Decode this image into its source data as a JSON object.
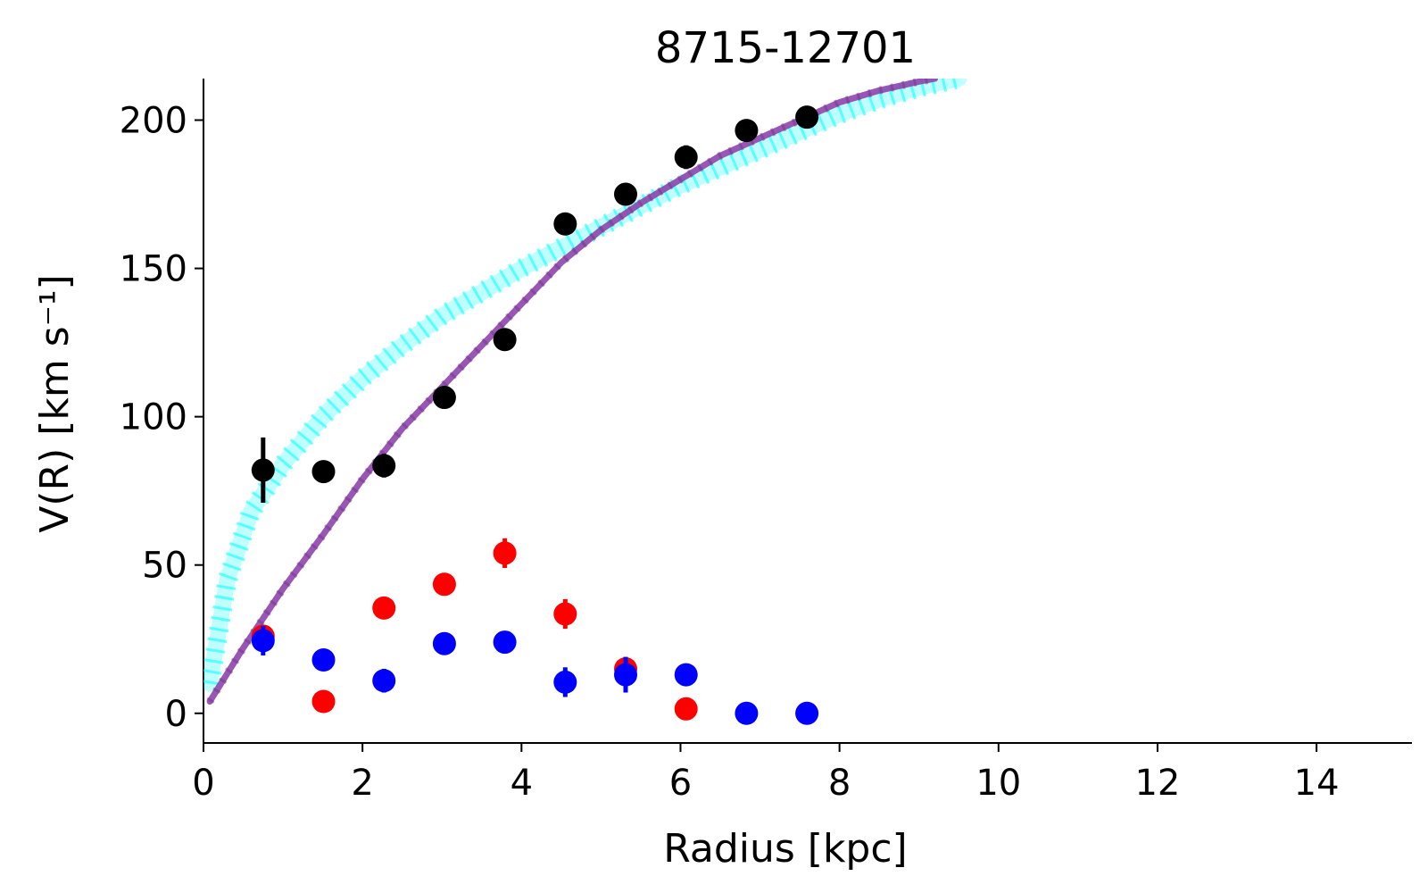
{
  "chart_data": {
    "type": "scatter",
    "title": "8715-12701",
    "xlabel": "Radius [kpc]",
    "ylabel": "V(R) [km s⁻¹]",
    "xlim": [
      0,
      15.2
    ],
    "ylim": [
      -10,
      214
    ],
    "xticks": [
      0,
      2,
      4,
      6,
      8,
      10,
      12,
      14
    ],
    "yticks": [
      0,
      50,
      100,
      150,
      200
    ],
    "grid": false,
    "legend": "none",
    "series": [
      {
        "color": "#000000",
        "points": [
          {
            "x": 0.75,
            "y": 82,
            "err": 11
          },
          {
            "x": 1.51,
            "y": 81.5,
            "err": 2
          },
          {
            "x": 2.27,
            "y": 83.5,
            "err": 4
          },
          {
            "x": 3.03,
            "y": 106.5,
            "err": 2
          },
          {
            "x": 3.79,
            "y": 126,
            "err": 2
          },
          {
            "x": 4.55,
            "y": 165,
            "err": 2
          },
          {
            "x": 5.31,
            "y": 175,
            "err": 2
          },
          {
            "x": 6.07,
            "y": 187.5,
            "err": 4
          },
          {
            "x": 6.83,
            "y": 196.5,
            "err": 2
          },
          {
            "x": 7.59,
            "y": 201,
            "err": 2
          }
        ]
      },
      {
        "color": "#ff0000",
        "points": [
          {
            "x": 0.75,
            "y": 26,
            "err": 3
          },
          {
            "x": 1.51,
            "y": 4,
            "err": 1
          },
          {
            "x": 2.27,
            "y": 35.5,
            "err": 2
          },
          {
            "x": 3.03,
            "y": 43.5,
            "err": 2
          },
          {
            "x": 3.79,
            "y": 54,
            "err": 5
          },
          {
            "x": 4.55,
            "y": 33.5,
            "err": 5
          },
          {
            "x": 5.31,
            "y": 15,
            "err": 4
          },
          {
            "x": 6.07,
            "y": 1.5,
            "err": 1
          }
        ]
      },
      {
        "color": "#0000ff",
        "points": [
          {
            "x": 0.75,
            "y": 24.5,
            "err": 5
          },
          {
            "x": 1.51,
            "y": 18,
            "err": 2
          },
          {
            "x": 2.27,
            "y": 11,
            "err": 4
          },
          {
            "x": 3.03,
            "y": 23.5,
            "err": 2
          },
          {
            "x": 3.79,
            "y": 24,
            "err": 2
          },
          {
            "x": 4.55,
            "y": 10.5,
            "err": 5
          },
          {
            "x": 5.31,
            "y": 13,
            "err": 6
          },
          {
            "x": 6.07,
            "y": 13,
            "err": 2
          },
          {
            "x": 6.83,
            "y": 0,
            "err": 1
          },
          {
            "x": 7.59,
            "y": 0,
            "err": 1
          }
        ]
      }
    ],
    "model_curves": [
      {
        "color": "#00ffff",
        "style": "dotted-band",
        "points": [
          [
            0.08,
            10
          ],
          [
            0.3,
            45
          ],
          [
            0.6,
            68
          ],
          [
            1.0,
            84
          ],
          [
            1.5,
            100
          ],
          [
            2.0,
            113
          ],
          [
            2.5,
            124
          ],
          [
            3.0,
            134
          ],
          [
            3.5,
            142
          ],
          [
            4.0,
            150
          ],
          [
            4.5,
            157
          ],
          [
            5.0,
            164
          ],
          [
            5.5,
            171
          ],
          [
            6.0,
            178
          ],
          [
            6.5,
            184
          ],
          [
            7.0,
            190
          ],
          [
            7.5,
            196
          ],
          [
            8.0,
            202
          ],
          [
            8.5,
            207
          ],
          [
            9.0,
            211
          ],
          [
            9.5,
            214
          ]
        ]
      },
      {
        "color": "#8e44ad",
        "style": "solid",
        "points": [
          [
            0.08,
            4
          ],
          [
            0.5,
            22
          ],
          [
            1.0,
            42
          ],
          [
            1.5,
            60
          ],
          [
            2.0,
            79
          ],
          [
            2.5,
            96
          ],
          [
            3.0,
            110
          ],
          [
            3.5,
            124
          ],
          [
            4.0,
            138
          ],
          [
            4.5,
            152
          ],
          [
            5.0,
            163
          ],
          [
            5.5,
            172
          ],
          [
            6.0,
            180
          ],
          [
            6.5,
            188
          ],
          [
            7.0,
            194
          ],
          [
            7.5,
            200
          ],
          [
            8.0,
            206
          ],
          [
            8.5,
            210
          ],
          [
            9.0,
            213
          ],
          [
            9.2,
            214
          ]
        ]
      }
    ]
  }
}
